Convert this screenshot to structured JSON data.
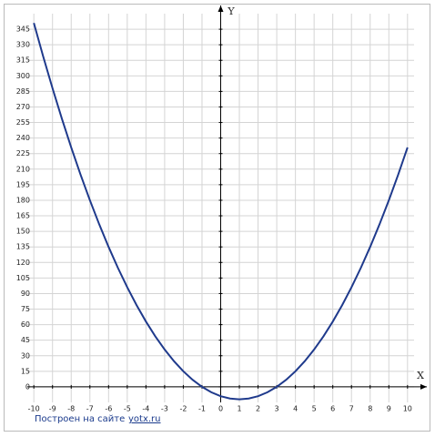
{
  "chart_data": {
    "type": "line",
    "xlabel": "X",
    "ylabel": "Y",
    "x": [
      -10,
      -9.5,
      -9,
      -8.5,
      -8,
      -7.5,
      -7,
      -6.5,
      -6,
      -5.5,
      -5,
      -4.5,
      -4,
      -3.5,
      -3,
      -2.5,
      -2,
      -1.5,
      -1,
      -0.5,
      0,
      0.5,
      1,
      1.5,
      2,
      2.5,
      3,
      3.5,
      4,
      4.5,
      5,
      5.5,
      6,
      6.5,
      7,
      7.5,
      8,
      8.5,
      9,
      9.5,
      10
    ],
    "series": [
      {
        "color": "#1f3a8c",
        "values": [
          351,
          318.75,
          288,
          258.75,
          231,
          204.75,
          180,
          156.75,
          135,
          114.75,
          96,
          78.75,
          63,
          48.75,
          36,
          24.75,
          15,
          6.75,
          0,
          -5.25,
          -9,
          -11.25,
          -12,
          -11.25,
          -9,
          -5.25,
          0,
          6.75,
          15,
          24.75,
          36,
          48.75,
          63,
          78.75,
          96,
          114.75,
          135,
          156.75,
          180,
          204.75,
          231
        ]
      }
    ],
    "xlim": [
      -10.35,
      10.35
    ],
    "ylim": [
      -15,
      360
    ],
    "xticks": [
      -10,
      -9,
      -8,
      -7,
      -6,
      -5,
      -4,
      -3,
      -2,
      -1,
      0,
      1,
      2,
      3,
      4,
      5,
      6,
      7,
      8,
      9,
      10
    ],
    "yticks": [
      0,
      15,
      30,
      45,
      60,
      75,
      90,
      105,
      120,
      135,
      150,
      165,
      180,
      195,
      210,
      225,
      240,
      255,
      270,
      285,
      300,
      315,
      330,
      345
    ],
    "grid": true,
    "footer": {
      "text": "Построен на сайте",
      "link": "yotx.ru"
    }
  }
}
